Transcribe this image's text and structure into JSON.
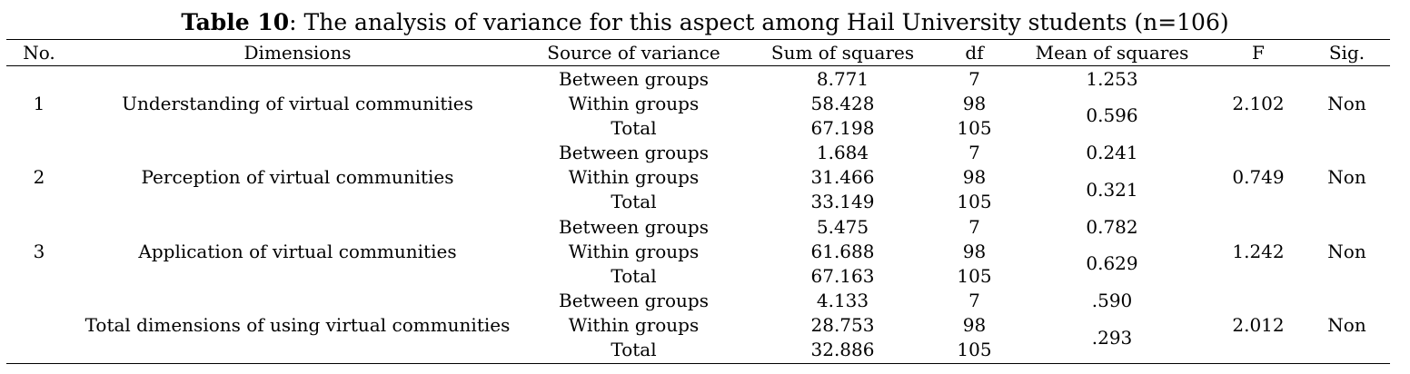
{
  "caption": {
    "label": "Table 10",
    "text": ": The analysis of variance for this aspect among Hail University students (n=106)"
  },
  "headers": [
    "No.",
    "Dimensions",
    "Source of variance",
    "Sum of squares",
    "df",
    "Mean of squares",
    "F",
    "Sig."
  ],
  "groups": [
    {
      "no": "1",
      "dimension": "Understanding of virtual communities",
      "rows": [
        {
          "source": "Between groups",
          "ss": "8.771",
          "df": "7"
        },
        {
          "source": "Within groups",
          "ss": "58.428",
          "df": "98"
        },
        {
          "source": "Total",
          "ss": "67.198",
          "df": "105"
        }
      ],
      "ms_between": "1.253",
      "ms_within": "0.596",
      "f": "2.102",
      "sig": "Non"
    },
    {
      "no": "2",
      "dimension": "Perception of virtual communities",
      "rows": [
        {
          "source": "Between groups",
          "ss": "1.684",
          "df": "7"
        },
        {
          "source": "Within groups",
          "ss": "31.466",
          "df": "98"
        },
        {
          "source": "Total",
          "ss": "33.149",
          "df": "105"
        }
      ],
      "ms_between": "0.241",
      "ms_within": "0.321",
      "f": "0.749",
      "sig": "Non"
    },
    {
      "no": "3",
      "dimension": "Application of virtual communities",
      "rows": [
        {
          "source": "Between groups",
          "ss": "5.475",
          "df": "7"
        },
        {
          "source": "Within groups",
          "ss": "61.688",
          "df": "98"
        },
        {
          "source": "Total",
          "ss": "67.163",
          "df": "105"
        }
      ],
      "ms_between": "0.782",
      "ms_within": "0.629",
      "f": "1.242",
      "sig": "Non"
    },
    {
      "no": "",
      "dimension": "Total dimensions of using virtual communities",
      "rows": [
        {
          "source": "Between groups",
          "ss": "4.133",
          "df": "7"
        },
        {
          "source": "Within groups",
          "ss": "28.753",
          "df": "98"
        },
        {
          "source": "Total",
          "ss": "32.886",
          "df": "105"
        }
      ],
      "ms_between": ".590",
      "ms_within": ".293",
      "f": "2.012",
      "sig": "Non"
    }
  ]
}
